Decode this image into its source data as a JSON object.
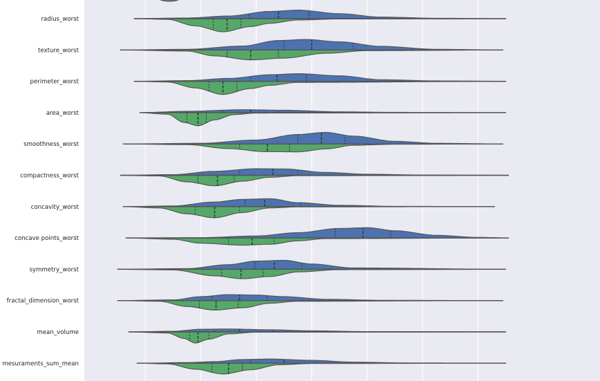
{
  "chart_data": {
    "type": "violin",
    "orientation": "horizontal",
    "split": true,
    "inner": "quartile",
    "grid": true,
    "xlim": [
      -4.2,
      14.4
    ],
    "xgrid": [
      -2,
      0,
      2,
      4,
      6,
      8,
      10
    ],
    "colors": {
      "upper": "#4c72b0",
      "lower": "#55a868",
      "background": "#eaeaf2",
      "outline": "#555555"
    },
    "categories": [
      "radius_worst",
      "texture_worst",
      "perimeter_worst",
      "area_worst",
      "smoothness_worst",
      "compactness_worst",
      "concavity_worst",
      "concave points_worst",
      "symmetry_worst",
      "fractal_dimension_worst",
      "mean_volume",
      "mesuraments_sum_mean"
    ],
    "violins": [
      {
        "range": [
          -2.4,
          11.0
        ],
        "upper": {
          "kde": [
            [
              -2.4,
              0
            ],
            [
              -0.5,
              0.05
            ],
            [
              1.0,
              0.2
            ],
            [
              2.5,
              0.55
            ],
            [
              3.5,
              0.65
            ],
            [
              5.0,
              0.38
            ],
            [
              6.5,
              0.12
            ],
            [
              8.5,
              0.03
            ],
            [
              11.0,
              0
            ]
          ],
          "quartiles": [
            1.75,
            2.8,
            3.9
          ]
        },
        "lower": {
          "kde": [
            [
              -2.4,
              0
            ],
            [
              -1.2,
              0.05
            ],
            [
              -0.2,
              0.55
            ],
            [
              0.8,
              1.0
            ],
            [
              1.8,
              0.6
            ],
            [
              2.5,
              0.35
            ],
            [
              3.5,
              0.1
            ],
            [
              5.0,
              0.02
            ],
            [
              11.0,
              0
            ]
          ],
          "quartiles": [
            0.45,
            0.95,
            1.45
          ]
        }
      },
      {
        "range": [
          -2.9,
          10.9
        ],
        "upper": {
          "kde": [
            [
              -2.9,
              0
            ],
            [
              -0.5,
              0.05
            ],
            [
              1.5,
              0.3
            ],
            [
              2.8,
              0.72
            ],
            [
              3.8,
              0.8
            ],
            [
              5.0,
              0.62
            ],
            [
              6.5,
              0.28
            ],
            [
              8.5,
              0.05
            ],
            [
              10.9,
              0
            ]
          ],
          "quartiles": [
            3.0,
            4.0,
            5.5
          ]
        },
        "lower": {
          "kde": [
            [
              -2.9,
              0
            ],
            [
              -0.5,
              0.08
            ],
            [
              0.5,
              0.45
            ],
            [
              1.8,
              0.75
            ],
            [
              3.0,
              0.62
            ],
            [
              4.5,
              0.25
            ],
            [
              6.0,
              0.05
            ],
            [
              10.9,
              0
            ]
          ],
          "quartiles": [
            0.95,
            1.8,
            2.8
          ]
        }
      },
      {
        "range": [
          -2.4,
          11.0
        ],
        "upper": {
          "kde": [
            [
              -2.4,
              0
            ],
            [
              -0.5,
              0.05
            ],
            [
              1.0,
              0.22
            ],
            [
              2.5,
              0.5
            ],
            [
              3.5,
              0.58
            ],
            [
              5.0,
              0.42
            ],
            [
              6.5,
              0.12
            ],
            [
              8.5,
              0.03
            ],
            [
              11.0,
              0
            ]
          ],
          "quartiles": [
            1.8,
            2.75,
            3.8
          ]
        },
        "lower": {
          "kde": [
            [
              -2.4,
              0
            ],
            [
              -1.2,
              0.05
            ],
            [
              -0.2,
              0.5
            ],
            [
              0.8,
              1.0
            ],
            [
              1.8,
              0.55
            ],
            [
              2.5,
              0.3
            ],
            [
              3.5,
              0.08
            ],
            [
              11.0,
              0
            ]
          ],
          "quartiles": [
            0.3,
            0.8,
            1.3
          ]
        }
      },
      {
        "range": [
          -2.2,
          11.0
        ],
        "upper": {
          "kde": [
            [
              -2.2,
              0
            ],
            [
              -0.5,
              0.1
            ],
            [
              1.5,
              0.22
            ],
            [
              3.0,
              0.18
            ],
            [
              5.0,
              0.06
            ],
            [
              7.0,
              0.02
            ],
            [
              11.0,
              0
            ]
          ],
          "quartiles": [
            0.8,
            1.8,
            2.8
          ]
        },
        "lower": {
          "kde": [
            [
              -2.2,
              0
            ],
            [
              -1.2,
              0.12
            ],
            [
              -0.6,
              0.75
            ],
            [
              -0.1,
              1.0
            ],
            [
              0.5,
              0.55
            ],
            [
              1.2,
              0.15
            ],
            [
              2.0,
              0.03
            ],
            [
              11.0,
              0
            ]
          ],
          "quartiles": [
            -0.5,
            -0.1,
            0.2
          ]
        }
      },
      {
        "range": [
          -2.8,
          10.9
        ],
        "upper": {
          "kde": [
            [
              -2.8,
              0
            ],
            [
              0.0,
              0.05
            ],
            [
              2.0,
              0.3
            ],
            [
              3.5,
              0.72
            ],
            [
              4.5,
              0.88
            ],
            [
              5.5,
              0.6
            ],
            [
              7.0,
              0.2
            ],
            [
              8.5,
              0.05
            ],
            [
              10.9,
              0
            ]
          ],
          "quartiles": [
            3.5,
            4.35,
            5.2
          ]
        },
        "lower": {
          "kde": [
            [
              -2.8,
              0
            ],
            [
              -0.5,
              0.05
            ],
            [
              1.0,
              0.35
            ],
            [
              2.3,
              0.58
            ],
            [
              3.5,
              0.6
            ],
            [
              4.5,
              0.38
            ],
            [
              5.5,
              0.1
            ],
            [
              7.0,
              0.02
            ],
            [
              10.9,
              0
            ]
          ],
          "quartiles": [
            1.4,
            2.4,
            3.2
          ]
        }
      },
      {
        "range": [
          -2.9,
          11.1
        ],
        "upper": {
          "kde": [
            [
              -2.9,
              0
            ],
            [
              -1.0,
              0.05
            ],
            [
              0.5,
              0.3
            ],
            [
              2.0,
              0.5
            ],
            [
              3.0,
              0.48
            ],
            [
              4.5,
              0.22
            ],
            [
              6.0,
              0.08
            ],
            [
              8.0,
              0.02
            ],
            [
              11.1,
              0
            ]
          ],
          "quartiles": [
            1.4,
            2.6,
            3.5
          ]
        },
        "lower": {
          "kde": [
            [
              -2.9,
              0
            ],
            [
              -1.5,
              0.05
            ],
            [
              -0.5,
              0.5
            ],
            [
              0.5,
              0.8
            ],
            [
              1.5,
              0.45
            ],
            [
              2.5,
              0.15
            ],
            [
              3.5,
              0.03
            ],
            [
              11.1,
              0
            ]
          ],
          "quartiles": [
            -0.1,
            0.6,
            1.2
          ]
        }
      },
      {
        "range": [
          -2.8,
          10.6
        ],
        "upper": {
          "kde": [
            [
              -2.8,
              0
            ],
            [
              -1.0,
              0.05
            ],
            [
              0.5,
              0.35
            ],
            [
              1.5,
              0.55
            ],
            [
              2.5,
              0.6
            ],
            [
              3.5,
              0.3
            ],
            [
              5.0,
              0.1
            ],
            [
              7.0,
              0.02
            ],
            [
              10.6,
              0
            ]
          ],
          "quartiles": [
            1.6,
            2.3,
            3.6
          ]
        },
        "lower": {
          "kde": [
            [
              -2.8,
              0
            ],
            [
              -1.5,
              0.1
            ],
            [
              -0.5,
              0.55
            ],
            [
              0.5,
              0.85
            ],
            [
              1.5,
              0.45
            ],
            [
              2.5,
              0.1
            ],
            [
              3.5,
              0.02
            ],
            [
              10.6,
              0
            ]
          ],
          "quartiles": [
            -0.2,
            0.5,
            1.4
          ]
        }
      },
      {
        "range": [
          -2.7,
          11.1
        ],
        "upper": {
          "kde": [
            [
              -2.7,
              0
            ],
            [
              0.0,
              0.02
            ],
            [
              2.0,
              0.15
            ],
            [
              3.5,
              0.4
            ],
            [
              5.0,
              0.72
            ],
            [
              6.0,
              0.78
            ],
            [
              7.0,
              0.55
            ],
            [
              8.5,
              0.2
            ],
            [
              10.0,
              0.04
            ],
            [
              11.1,
              0
            ]
          ],
          "quartiles": [
            4.85,
            5.85,
            6.85
          ]
        },
        "lower": {
          "kde": [
            [
              -2.7,
              0
            ],
            [
              -1.0,
              0.1
            ],
            [
              0.0,
              0.4
            ],
            [
              1.5,
              0.55
            ],
            [
              2.5,
              0.48
            ],
            [
              3.5,
              0.22
            ],
            [
              4.5,
              0.05
            ],
            [
              11.1,
              0
            ]
          ],
          "quartiles": [
            1.0,
            1.85,
            2.65
          ]
        }
      },
      {
        "range": [
          -3.0,
          11.0
        ],
        "upper": {
          "kde": [
            [
              -3.0,
              0
            ],
            [
              -0.5,
              0.05
            ],
            [
              1.0,
              0.35
            ],
            [
              2.0,
              0.62
            ],
            [
              3.0,
              0.68
            ],
            [
              4.0,
              0.4
            ],
            [
              5.5,
              0.1
            ],
            [
              11.0,
              0
            ]
          ],
          "quartiles": [
            1.95,
            2.65,
            3.65
          ]
        },
        "lower": {
          "kde": [
            [
              -3.0,
              0
            ],
            [
              -1.0,
              0.05
            ],
            [
              0.5,
              0.5
            ],
            [
              1.5,
              0.72
            ],
            [
              2.5,
              0.55
            ],
            [
              3.5,
              0.2
            ],
            [
              5.0,
              0.03
            ],
            [
              11.0,
              0
            ]
          ],
          "quartiles": [
            0.75,
            1.45,
            2.25
          ]
        }
      },
      {
        "range": [
          -3.0,
          10.9
        ],
        "upper": {
          "kde": [
            [
              -3.0,
              0
            ],
            [
              -1.0,
              0.05
            ],
            [
              0.0,
              0.3
            ],
            [
              1.0,
              0.45
            ],
            [
              2.0,
              0.42
            ],
            [
              3.0,
              0.3
            ],
            [
              4.5,
              0.1
            ],
            [
              6.5,
              0.02
            ],
            [
              10.9,
              0
            ]
          ],
          "quartiles": [
            0.4,
            1.4,
            2.4
          ]
        },
        "lower": {
          "kde": [
            [
              -3.0,
              0
            ],
            [
              -1.5,
              0.05
            ],
            [
              -0.5,
              0.45
            ],
            [
              0.5,
              0.72
            ],
            [
              1.5,
              0.55
            ],
            [
              2.5,
              0.2
            ],
            [
              3.5,
              0.05
            ],
            [
              10.9,
              0
            ]
          ],
          "quartiles": [
            -0.05,
            0.55,
            1.35
          ]
        }
      },
      {
        "range": [
          -2.6,
          11.0
        ],
        "upper": {
          "kde": [
            [
              -2.6,
              0
            ],
            [
              -1.0,
              0.05
            ],
            [
              0.0,
              0.2
            ],
            [
              1.0,
              0.22
            ],
            [
              2.5,
              0.16
            ],
            [
              4.0,
              0.08
            ],
            [
              6.0,
              0.02
            ],
            [
              11.0,
              0
            ]
          ],
          "quartiles": [
            0.5,
            1.4,
            2.6
          ]
        },
        "lower": {
          "kde": [
            [
              -2.6,
              0
            ],
            [
              -1.2,
              0.08
            ],
            [
              -0.6,
              0.5
            ],
            [
              -0.2,
              0.85
            ],
            [
              0.3,
              0.55
            ],
            [
              1.0,
              0.15
            ],
            [
              2.0,
              0.02
            ],
            [
              11.0,
              0
            ]
          ],
          "quartiles": [
            -0.4,
            -0.1,
            0.3
          ]
        }
      },
      {
        "range": [
          -2.3,
          11.0
        ],
        "upper": {
          "kde": [
            [
              -2.3,
              0
            ],
            [
              -0.5,
              0.05
            ],
            [
              0.5,
              0.12
            ],
            [
              1.5,
              0.28
            ],
            [
              2.5,
              0.32
            ],
            [
              4.0,
              0.22
            ],
            [
              5.5,
              0.08
            ],
            [
              7.5,
              0.02
            ],
            [
              11.0,
              0
            ]
          ],
          "quartiles": [
            1.8,
            3.0,
            4.2
          ]
        },
        "lower": {
          "kde": [
            [
              -2.3,
              0
            ],
            [
              -1.2,
              0.05
            ],
            [
              -0.2,
              0.45
            ],
            [
              0.8,
              0.82
            ],
            [
              1.8,
              0.5
            ],
            [
              2.8,
              0.12
            ],
            [
              4.0,
              0.02
            ],
            [
              11.0,
              0
            ]
          ],
          "quartiles": [
            0.4,
            1.0,
            1.5
          ]
        }
      }
    ]
  }
}
